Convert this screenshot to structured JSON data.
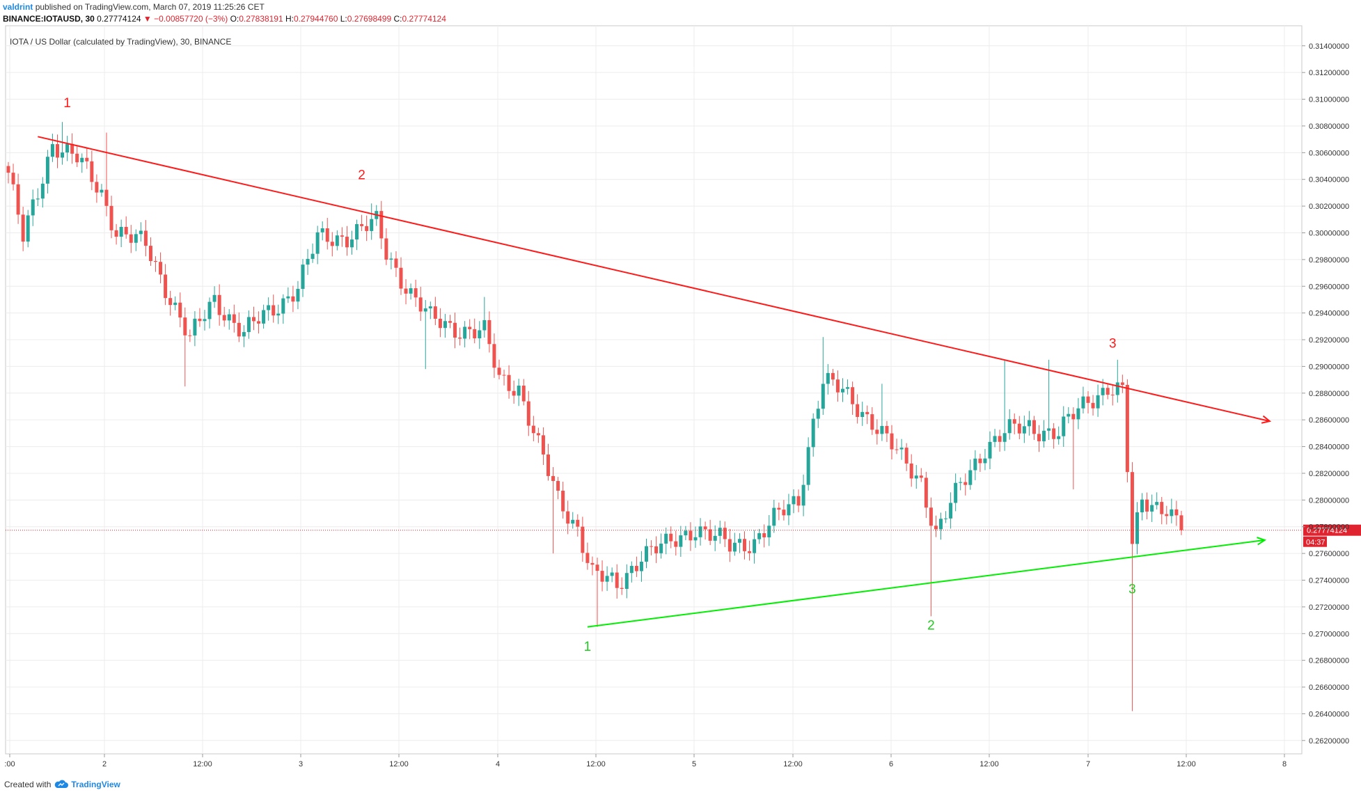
{
  "header": {
    "author": "valdrint",
    "published": "published on TradingView.com, March 07, 2019 11:25:26 CET",
    "symbol": "BINANCE:IOTAUSD, 30",
    "last": "0.27774124",
    "arrow": "▼",
    "change": "−0.00857720 (−3%)",
    "o_label": "O:",
    "o_value": "0.27838191",
    "h_label": "H:",
    "h_value": "0.27944760",
    "l_label": "L:",
    "l_value": "0.27698499",
    "c_label": "C:",
    "c_value": "0.27774124"
  },
  "chart_title": "IOTA / US Dollar (calculated by TradingView), 30, BINANCE",
  "footer": {
    "created_with": "Created with",
    "brand": "TradingView"
  },
  "colors": {
    "up": "#26a69a",
    "down": "#ef5350",
    "resistance": "#ff1a1a",
    "support": "#00ee00",
    "price_line": "#e0242f"
  },
  "chart_data": {
    "type": "candlestick",
    "interval": "30",
    "ylim": [
      0.261,
      0.3155
    ],
    "y_ticks": [
      "0.31400000",
      "0.31200000",
      "0.31000000",
      "0.30800000",
      "0.30600000",
      "0.30400000",
      "0.30200000",
      "0.30000000",
      "0.29800000",
      "0.29600000",
      "0.29400000",
      "0.29200000",
      "0.29000000",
      "0.28800000",
      "0.28600000",
      "0.28400000",
      "0.28200000",
      "0.28000000",
      "0.27800000",
      "0.27600000",
      "0.27400000",
      "0.27200000",
      "0.27000000",
      "0.26800000",
      "0.26600000",
      "0.26400000",
      "0.26200000"
    ],
    "x_ticks": [
      ":00",
      "2",
      "12:00",
      "3",
      "12:00",
      "4",
      "12:00",
      "5",
      "12:00",
      "6",
      "12:00",
      "7",
      "12:00",
      "8"
    ],
    "current_price": 0.27774124,
    "current_price_label": "0.27774124",
    "countdown": "04:37",
    "resistance_line": {
      "start": {
        "index": 6,
        "price": 0.3072
      },
      "end": {
        "index": 257,
        "price": 0.2859
      }
    },
    "support_line": {
      "start": {
        "index": 118,
        "price": 0.2705
      },
      "end": {
        "index": 256,
        "price": 0.277
      }
    },
    "resistance_labels": [
      {
        "text": "1",
        "index": 12,
        "price": 0.3094
      },
      {
        "text": "2",
        "index": 72,
        "price": 0.304
      },
      {
        "text": "3",
        "index": 225,
        "price": 0.2914
      }
    ],
    "support_labels": [
      {
        "text": "1",
        "index": 118,
        "price": 0.2687
      },
      {
        "text": "2",
        "index": 188,
        "price": 0.2703
      },
      {
        "text": "3",
        "index": 229,
        "price": 0.273
      }
    ],
    "key_points": [
      {
        "i": 0,
        "p": 0.3045
      },
      {
        "i": 3,
        "p": 0.2995
      },
      {
        "i": 6,
        "p": 0.303
      },
      {
        "i": 9,
        "p": 0.3068
      },
      {
        "i": 14,
        "p": 0.3055
      },
      {
        "i": 19,
        "p": 0.303
      },
      {
        "i": 22,
        "p": 0.3002
      },
      {
        "i": 28,
        "p": 0.299
      },
      {
        "i": 34,
        "p": 0.2945
      },
      {
        "i": 37,
        "p": 0.292
      },
      {
        "i": 42,
        "p": 0.295
      },
      {
        "i": 48,
        "p": 0.2925
      },
      {
        "i": 53,
        "p": 0.294
      },
      {
        "i": 59,
        "p": 0.296
      },
      {
        "i": 63,
        "p": 0.2995
      },
      {
        "i": 69,
        "p": 0.2998
      },
      {
        "i": 75,
        "p": 0.3007
      },
      {
        "i": 77,
        "p": 0.2985
      },
      {
        "i": 82,
        "p": 0.2955
      },
      {
        "i": 86,
        "p": 0.2935
      },
      {
        "i": 90,
        "p": 0.293
      },
      {
        "i": 97,
        "p": 0.2925
      },
      {
        "i": 100,
        "p": 0.289
      },
      {
        "i": 104,
        "p": 0.2885
      },
      {
        "i": 108,
        "p": 0.284
      },
      {
        "i": 112,
        "p": 0.28
      },
      {
        "i": 116,
        "p": 0.278
      },
      {
        "i": 119,
        "p": 0.2745
      },
      {
        "i": 124,
        "p": 0.2735
      },
      {
        "i": 129,
        "p": 0.276
      },
      {
        "i": 134,
        "p": 0.2765
      },
      {
        "i": 140,
        "p": 0.278
      },
      {
        "i": 147,
        "p": 0.2765
      },
      {
        "i": 152,
        "p": 0.277
      },
      {
        "i": 156,
        "p": 0.2785
      },
      {
        "i": 161,
        "p": 0.28
      },
      {
        "i": 164,
        "p": 0.286
      },
      {
        "i": 166,
        "p": 0.289
      },
      {
        "i": 170,
        "p": 0.288
      },
      {
        "i": 176,
        "p": 0.286
      },
      {
        "i": 182,
        "p": 0.283
      },
      {
        "i": 186,
        "p": 0.2815
      },
      {
        "i": 189,
        "p": 0.2775
      },
      {
        "i": 194,
        "p": 0.281
      },
      {
        "i": 199,
        "p": 0.284
      },
      {
        "i": 203,
        "p": 0.285
      },
      {
        "i": 208,
        "p": 0.2855
      },
      {
        "i": 214,
        "p": 0.285
      },
      {
        "i": 220,
        "p": 0.2875
      },
      {
        "i": 224,
        "p": 0.2885
      },
      {
        "i": 227,
        "p": 0.288
      },
      {
        "i": 229,
        "p": 0.2765
      },
      {
        "i": 231,
        "p": 0.28
      },
      {
        "i": 236,
        "p": 0.2795
      },
      {
        "i": 239,
        "p": 0.2777
      }
    ],
    "volatile_points": [
      {
        "i": 11,
        "hi": 0.3083
      },
      {
        "i": 20,
        "hi": 0.3075
      },
      {
        "i": 36,
        "lo": 0.2885
      },
      {
        "i": 74,
        "hi": 0.3022
      },
      {
        "i": 85,
        "lo": 0.2898
      },
      {
        "i": 97,
        "hi": 0.2952
      },
      {
        "i": 111,
        "lo": 0.276
      },
      {
        "i": 120,
        "lo": 0.2705
      },
      {
        "i": 166,
        "hi": 0.2922
      },
      {
        "i": 178,
        "hi": 0.2887
      },
      {
        "i": 188,
        "lo": 0.2713
      },
      {
        "i": 203,
        "hi": 0.2905
      },
      {
        "i": 212,
        "hi": 0.2905
      },
      {
        "i": 217,
        "lo": 0.2808
      },
      {
        "i": 226,
        "hi": 0.2905
      },
      {
        "i": 229,
        "lo": 0.2642
      }
    ]
  }
}
